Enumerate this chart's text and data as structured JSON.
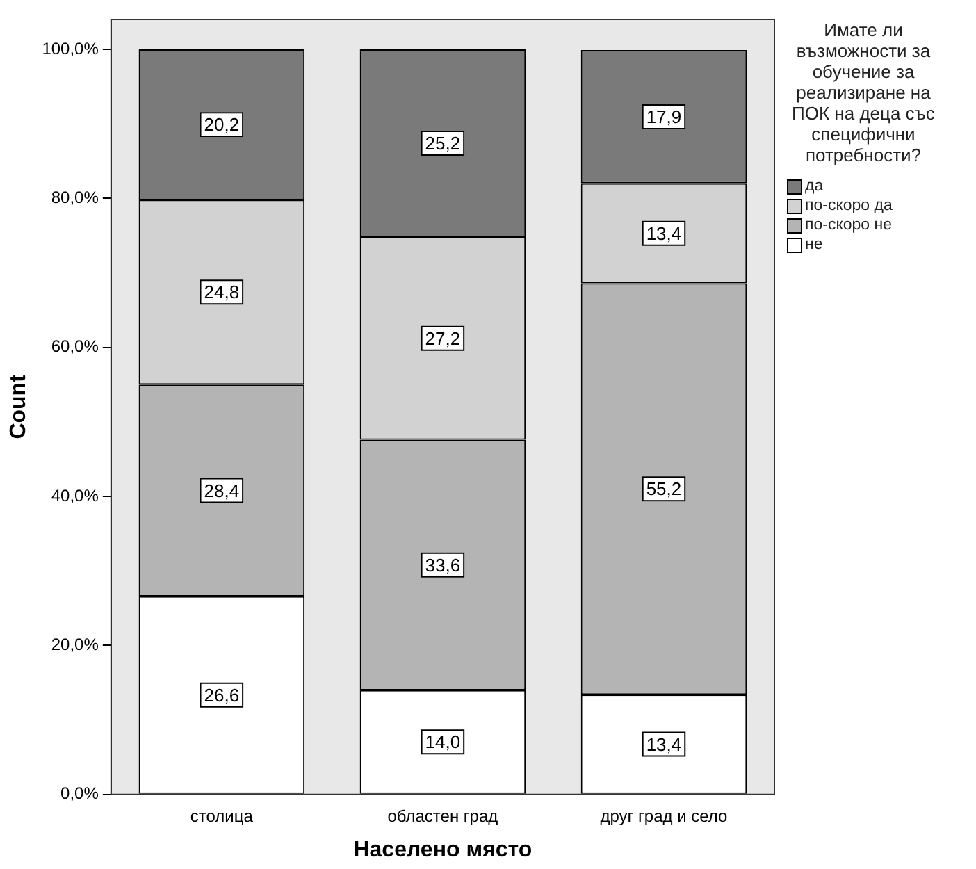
{
  "chart_data": {
    "type": "bar",
    "stacked": true,
    "xlabel": "Населено място",
    "ylabel": "Count",
    "legend_title": "Имате ли възможности за обучение за реализиране на ПОК на деца със специфични потребности?",
    "legend": "right",
    "categories": [
      "столица",
      "областен град",
      "друг град и село"
    ],
    "series": [
      {
        "name": "не",
        "color": "#ffffff",
        "values": [
          26.6,
          14.0,
          13.4
        ],
        "value_labels": [
          "26,6",
          "14,0",
          "13,4"
        ]
      },
      {
        "name": "по-скоро не",
        "color": "#b4b4b4",
        "values": [
          28.4,
          33.6,
          55.2
        ],
        "value_labels": [
          "28,4",
          "33,6",
          "55,2"
        ]
      },
      {
        "name": "по-скоро да",
        "color": "#d2d2d2",
        "values": [
          24.8,
          27.2,
          13.4
        ],
        "value_labels": [
          "24,8",
          "27,2",
          "13,4"
        ]
      },
      {
        "name": "да",
        "color": "#7a7a7a",
        "values": [
          20.2,
          25.2,
          17.9
        ],
        "value_labels": [
          "20,2",
          "25,2",
          "17,9"
        ]
      }
    ],
    "ylim": [
      0,
      104
    ],
    "yticks": [
      {
        "value": 0,
        "label": "0,0%"
      },
      {
        "value": 20,
        "label": "20,0%"
      },
      {
        "value": 40,
        "label": "40,0%"
      },
      {
        "value": 60,
        "label": "60,0%"
      },
      {
        "value": 80,
        "label": "80,0%"
      },
      {
        "value": 100,
        "label": "100,0%"
      }
    ],
    "grid": false
  }
}
